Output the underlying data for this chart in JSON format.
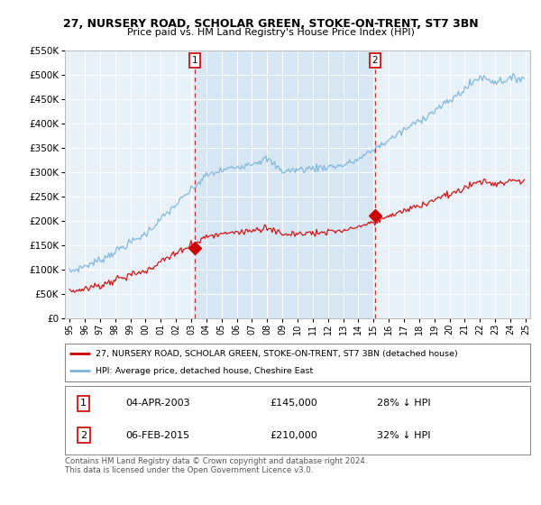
{
  "title": "27, NURSERY ROAD, SCHOLAR GREEN, STOKE-ON-TRENT, ST7 3BN",
  "subtitle": "Price paid vs. HM Land Registry's House Price Index (HPI)",
  "legend_line1": "27, NURSERY ROAD, SCHOLAR GREEN, STOKE-ON-TRENT, ST7 3BN (detached house)",
  "legend_line2": "HPI: Average price, detached house, Cheshire East",
  "footer": "Contains HM Land Registry data © Crown copyright and database right 2024.\nThis data is licensed under the Open Government Licence v3.0.",
  "annotation1_label": "1",
  "annotation1_date": "04-APR-2003",
  "annotation1_price": "£145,000",
  "annotation1_hpi": "28% ↓ HPI",
  "annotation2_label": "2",
  "annotation2_date": "06-FEB-2015",
  "annotation2_price": "£210,000",
  "annotation2_hpi": "32% ↓ HPI",
  "sale1_year": 2003.25,
  "sale1_price": 145000,
  "sale2_year": 2015.08,
  "sale2_price": 210000,
  "hpi_color": "#7ab4d8",
  "price_color": "#cc0000",
  "annotation_color": "#cc0000",
  "shade_color": "#ddeeff",
  "background_color": "#e8f0f8",
  "plot_bg_color": "#e8f0f8",
  "ylim_min": 0,
  "ylim_max": 550000,
  "xlim_start": 1994.7,
  "xlim_end": 2025.3
}
